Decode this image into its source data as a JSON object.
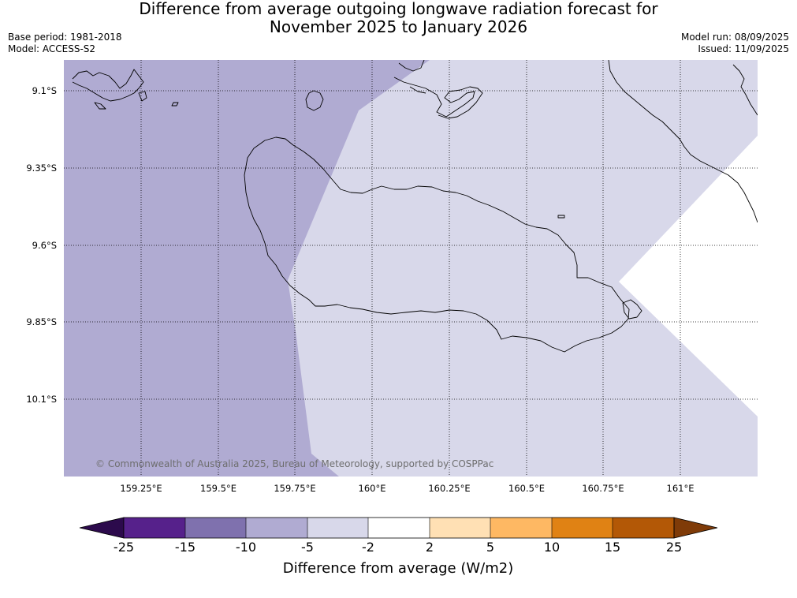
{
  "header": {
    "title_line1": "Difference from average outgoing longwave radiation forecast for",
    "title_line2": "November 2025 to January 2026",
    "base_period": "Base period: 1981-2018",
    "model": "Model: ACCESS-S2",
    "model_run": "Model run: 08/09/2025",
    "issued": "Issued: 11/09/2025"
  },
  "map": {
    "lat_labels": [
      "9.1°S",
      "9.35°S",
      "9.6°S",
      "9.85°S",
      "10.1°S"
    ],
    "lon_labels": [
      "159.25°E",
      "159.5°E",
      "159.75°E",
      "160°E",
      "160.25°E",
      "160.5°E",
      "160.75°E",
      "161°E"
    ],
    "copyright": "© Commonwealth of Australia 2025, Bureau of Meteorology, supported by COSPPac",
    "colors": {
      "band_minus10_minus5": "#b0abd2",
      "band_minus5_minus2": "#d8d8ea",
      "band_minus2_2": "#ffffff",
      "coast": "#000000",
      "grid": "#000000"
    }
  },
  "colorbar": {
    "tick_labels": [
      "-25",
      "-15",
      "-10",
      "-5",
      "-2",
      "2",
      "5",
      "10",
      "15",
      "25"
    ],
    "colors": [
      "#2c0a4c",
      "#56218b",
      "#7f71ae",
      "#b0abd2",
      "#d8d8ea",
      "#ffffff",
      "#ffe0b4",
      "#feb863",
      "#e08214",
      "#b35806",
      "#7f3b08"
    ],
    "label": "Difference from average (W/m2)"
  }
}
